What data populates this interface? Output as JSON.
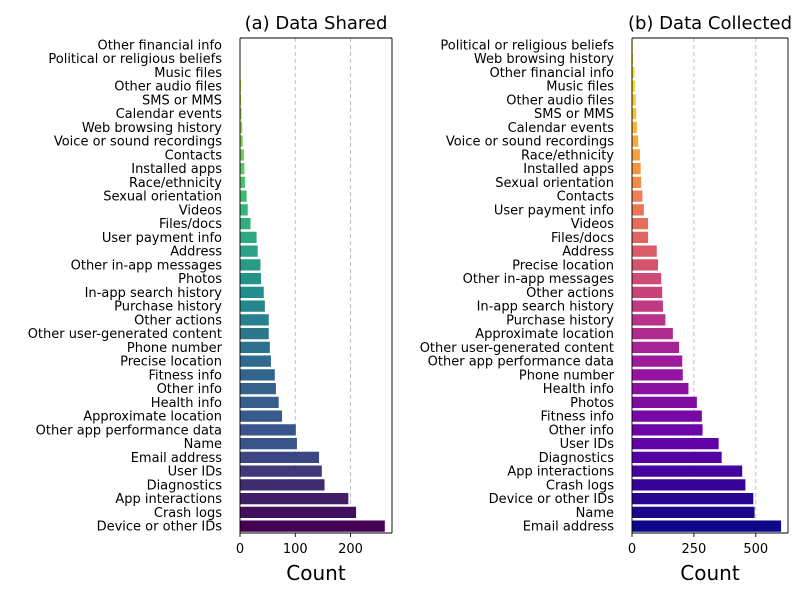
{
  "chart_data": [
    {
      "type": "bar",
      "orientation": "horizontal",
      "title": "(a) Data Shared",
      "xlabel": "Count",
      "ylabel": "",
      "xlim": [
        0,
        275
      ],
      "xticks": [
        0,
        100,
        200
      ],
      "grid": "vertical dashed",
      "colormap": "viridis (reversed, dark at bottom)",
      "categories": [
        "Other financial info",
        "Political or religious beliefs",
        "Music files",
        "Other audio files",
        "SMS or MMS",
        "Calendar events",
        "Web browsing history",
        "Voice or sound recordings",
        "Contacts",
        "Installed apps",
        "Race/ethnicity",
        "Sexual orientation",
        "Videos",
        "Files/docs",
        "User payment info",
        "Address",
        "Other in-app messages",
        "Photos",
        "In-app search history",
        "Purchase history",
        "Other actions",
        "Other user-generated content",
        "Phone number",
        "Precise location",
        "Fitness info",
        "Other info",
        "Health info",
        "Approximate location",
        "Other app performance data",
        "Name",
        "Email address",
        "User IDs",
        "Diagnostics",
        "App interactions",
        "Crash logs",
        "Device or other IDs"
      ],
      "values": [
        0,
        0,
        1,
        2,
        2,
        3,
        4,
        5,
        7,
        8,
        9,
        12,
        14,
        19,
        30,
        32,
        37,
        38,
        43,
        45,
        52,
        52,
        54,
        56,
        63,
        65,
        70,
        76,
        101,
        103,
        143,
        148,
        153,
        196,
        210,
        262
      ]
    },
    {
      "type": "bar",
      "orientation": "horizontal",
      "title": "(b) Data Collected",
      "xlabel": "Count",
      "ylabel": "",
      "xlim": [
        0,
        630
      ],
      "xticks": [
        0,
        250,
        500
      ],
      "grid": "vertical dashed",
      "colormap": "plasma (reversed, dark at bottom)",
      "categories": [
        "Political or religious beliefs",
        "Web browsing history",
        "Other financial info",
        "Music files",
        "Other audio files",
        "SMS or MMS",
        "Calendar events",
        "Voice or sound recordings",
        "Race/ethnicity",
        "Installed apps",
        "Sexual orientation",
        "Contacts",
        "User payment info",
        "Videos",
        "Files/docs",
        "Address",
        "Precise location",
        "Other in-app messages",
        "Other actions",
        "In-app search history",
        "Purchase history",
        "Approximate location",
        "Other user-generated content",
        "Other app performance data",
        "Phone number",
        "Health info",
        "Photos",
        "Fitness info",
        "Other info",
        "User IDs",
        "Diagnostics",
        "App interactions",
        "Crash logs",
        "Device or other IDs",
        "Name",
        "Email address"
      ],
      "values": [
        3,
        5,
        10,
        12,
        15,
        17,
        20,
        25,
        32,
        35,
        37,
        42,
        48,
        65,
        65,
        100,
        105,
        118,
        122,
        125,
        135,
        165,
        190,
        203,
        205,
        228,
        262,
        282,
        285,
        350,
        362,
        445,
        458,
        490,
        495,
        602
      ]
    }
  ]
}
